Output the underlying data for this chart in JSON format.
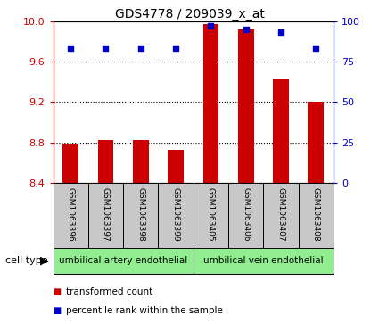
{
  "title": "GDS4778 / 209039_x_at",
  "samples": [
    "GSM1063396",
    "GSM1063397",
    "GSM1063398",
    "GSM1063399",
    "GSM1063405",
    "GSM1063406",
    "GSM1063407",
    "GSM1063408"
  ],
  "bar_values": [
    8.79,
    8.82,
    8.82,
    8.73,
    9.97,
    9.92,
    9.43,
    9.2
  ],
  "percentile_values": [
    83,
    83,
    83,
    83,
    97,
    95,
    93,
    83
  ],
  "ylim_left": [
    8.4,
    10.0
  ],
  "ylim_right": [
    0,
    100
  ],
  "yticks_left": [
    8.4,
    8.8,
    9.2,
    9.6,
    10.0
  ],
  "yticks_right": [
    0,
    25,
    50,
    75,
    100
  ],
  "cell_types": [
    {
      "label": "umbilical artery endothelial",
      "start": 0,
      "end": 4,
      "color": "#90EE90"
    },
    {
      "label": "umbilical vein endothelial",
      "start": 4,
      "end": 8,
      "color": "#90EE90"
    }
  ],
  "bar_color": "#CC0000",
  "point_color": "#0000CC",
  "label_bg_color": "#C8C8C8",
  "left_axis_color": "#CC0000",
  "right_axis_color": "#0000CC",
  "legend_red_label": "transformed count",
  "legend_blue_label": "percentile rank within the sample",
  "cell_type_label": "cell type",
  "bar_width": 0.45
}
